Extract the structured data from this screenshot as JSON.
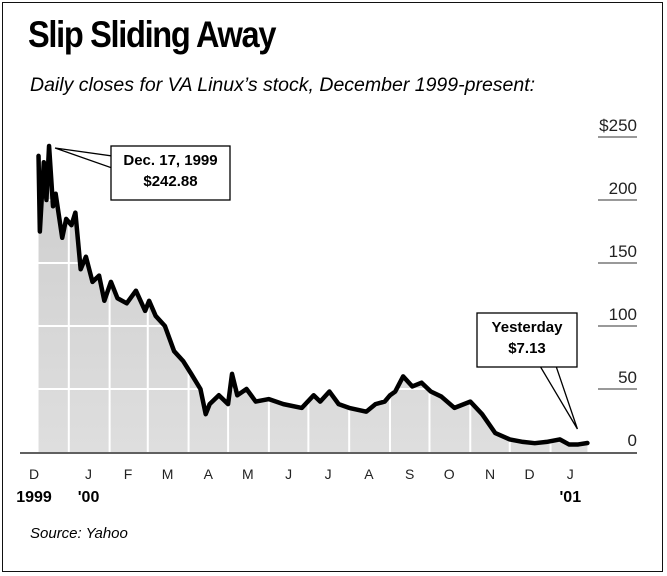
{
  "title": "Slip Sliding Away",
  "subtitle": "Daily closes for VA Linux’s stock, December 1999-present:",
  "source": "Source: Yahoo",
  "chart_data": {
    "type": "area",
    "title": "Slip Sliding Away",
    "subtitle": "Daily closes for VA Linux’s stock, December 1999-present:",
    "ylim": [
      0,
      250
    ],
    "yticks": [
      "$250",
      "200",
      "150",
      "100",
      "50",
      "0"
    ],
    "month_ticks": [
      "D",
      "J",
      "F",
      "M",
      "A",
      "M",
      "J",
      "J",
      "A",
      "S",
      "O",
      "N",
      "D",
      "J"
    ],
    "year_labels": [
      {
        "at": "D",
        "label": "1999"
      },
      {
        "at": "J",
        "label": "'00"
      },
      {
        "at": "J2",
        "label": "'01"
      }
    ],
    "grid": true,
    "x": [
      "1999-12-09",
      "1999-12-10",
      "1999-12-13",
      "1999-12-15",
      "1999-12-17",
      "1999-12-20",
      "1999-12-22",
      "1999-12-27",
      "1999-12-30",
      "2000-01-03",
      "2000-01-06",
      "2000-01-10",
      "2000-01-14",
      "2000-01-19",
      "2000-01-24",
      "2000-01-28",
      "2000-02-02",
      "2000-02-07",
      "2000-02-14",
      "2000-02-21",
      "2000-02-28",
      "2000-03-02",
      "2000-03-07",
      "2000-03-14",
      "2000-03-21",
      "2000-03-28",
      "2000-04-03",
      "2000-04-10",
      "2000-04-14",
      "2000-04-17",
      "2000-04-24",
      "2000-05-01",
      "2000-05-04",
      "2000-05-08",
      "2000-05-15",
      "2000-05-22",
      "2000-06-01",
      "2000-06-12",
      "2000-06-26",
      "2000-07-05",
      "2000-07-10",
      "2000-07-17",
      "2000-07-24",
      "2000-08-01",
      "2000-08-14",
      "2000-08-21",
      "2000-08-28",
      "2000-09-01",
      "2000-09-05",
      "2000-09-11",
      "2000-09-18",
      "2000-09-25",
      "2000-10-02",
      "2000-10-10",
      "2000-10-20",
      "2000-11-01",
      "2000-11-10",
      "2000-11-20",
      "2000-12-01",
      "2000-12-11",
      "2000-12-20",
      "2000-12-29",
      "2001-01-08",
      "2001-01-15",
      "2001-01-22",
      "2001-01-29"
    ],
    "series": [
      {
        "values": [
          235,
          175,
          230,
          200,
          242.88,
          195,
          205,
          170,
          185,
          180,
          190,
          145,
          155,
          135,
          140,
          120,
          135,
          122,
          118,
          128,
          112,
          120,
          108,
          100,
          80,
          72,
          62,
          50,
          30,
          38,
          45,
          38,
          62,
          45,
          50,
          40,
          42,
          38,
          35,
          45,
          40,
          48,
          38,
          35,
          32,
          38,
          40,
          45,
          48,
          60,
          52,
          55,
          48,
          44,
          35,
          40,
          30,
          15,
          10,
          8,
          7,
          8,
          10,
          6,
          6,
          7.13
        ]
      }
    ],
    "annotations": [
      {
        "date": "1999-12-17",
        "lines": [
          "Dec. 17, 1999",
          "$242.88"
        ]
      },
      {
        "date": "2001-01-29",
        "lines": [
          "Yesterday",
          "$7.13"
        ]
      }
    ]
  }
}
